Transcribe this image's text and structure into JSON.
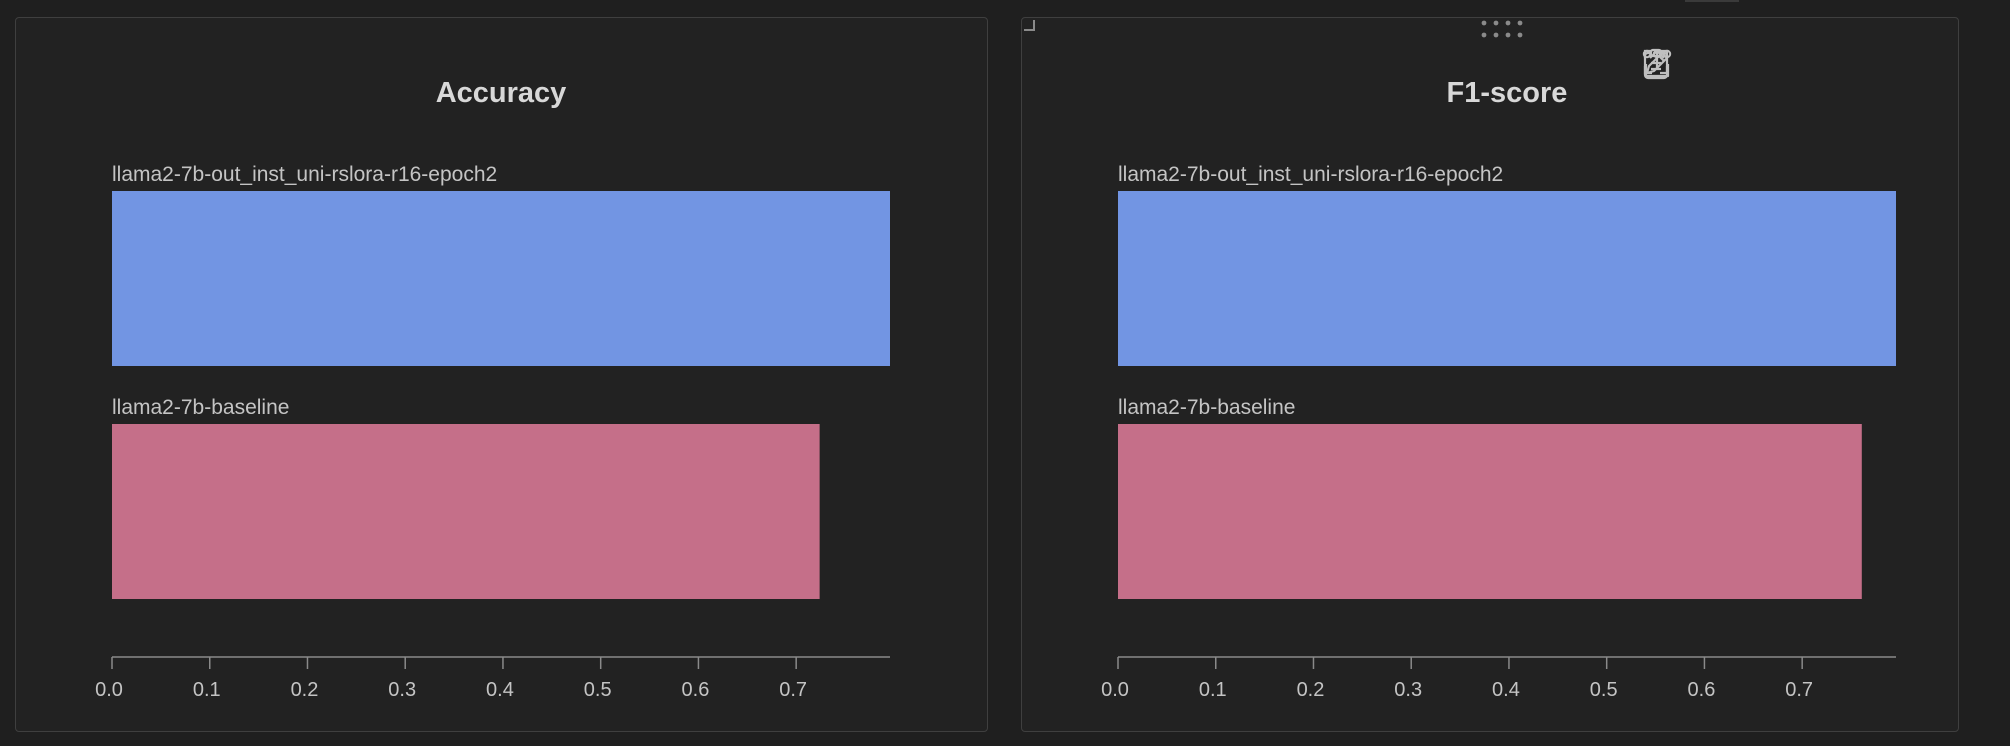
{
  "colors": {
    "background": "#1f1f1f",
    "panel": "#222222",
    "text": "#d8d8d8",
    "label": "#c4c4c4",
    "axis": "#8a8a8a"
  },
  "panels": [
    {
      "id": "accuracy",
      "toolbar": false
    },
    {
      "id": "f1",
      "toolbar": true,
      "toolbar_icons": [
        "clipboard-icon",
        "share-icon",
        "edit-icon",
        "fullscreen-icon",
        "more-icon"
      ]
    }
  ],
  "chart_data": [
    {
      "type": "bar",
      "orientation": "horizontal",
      "title": "Accuracy",
      "xlabel": "",
      "ylabel": "",
      "xlim": [
        0,
        0.796
      ],
      "xticks": [
        "0.0",
        "0.1",
        "0.2",
        "0.3",
        "0.4",
        "0.5",
        "0.6",
        "0.7"
      ],
      "bars": [
        {
          "label": "llama2-7b-out_inst_uni-rslora-r16-epoch2",
          "value": 0.796,
          "color": "#7295e3"
        },
        {
          "label": "llama2-7b-baseline",
          "value": 0.724,
          "color": "#c56f89"
        }
      ]
    },
    {
      "type": "bar",
      "orientation": "horizontal",
      "title": "F1-score",
      "xlabel": "",
      "ylabel": "",
      "xlim": [
        0,
        0.796
      ],
      "xticks": [
        "0.0",
        "0.1",
        "0.2",
        "0.3",
        "0.4",
        "0.5",
        "0.6",
        "0.7"
      ],
      "bars": [
        {
          "label": "llama2-7b-out_inst_uni-rslora-r16-epoch2",
          "value": 0.796,
          "color": "#7295e3"
        },
        {
          "label": "llama2-7b-baseline",
          "value": 0.761,
          "color": "#c56f89"
        }
      ]
    }
  ]
}
